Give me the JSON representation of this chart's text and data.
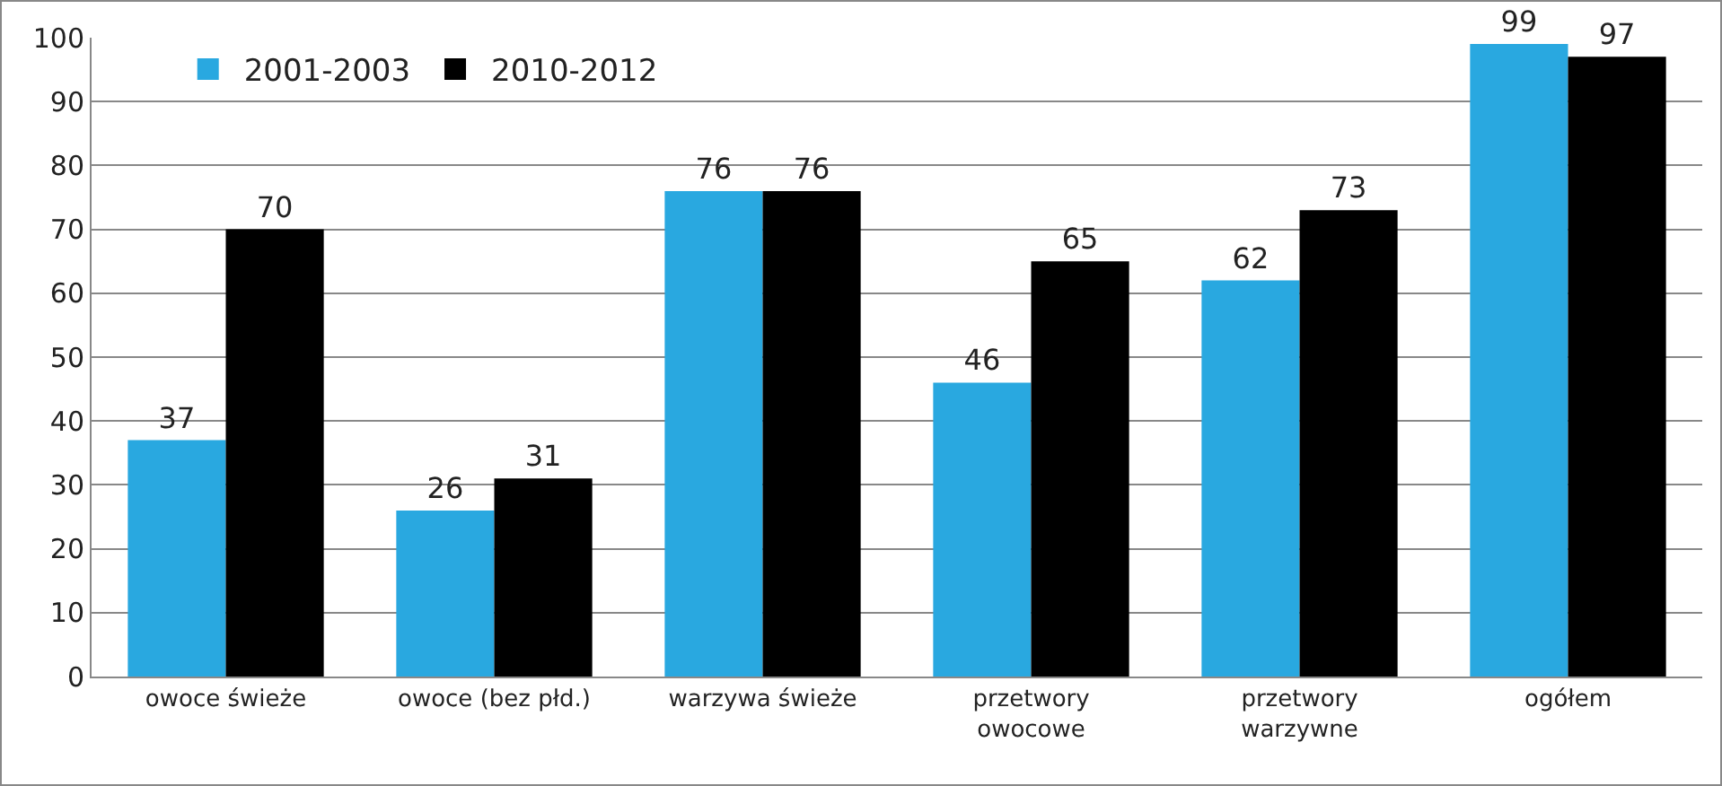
{
  "chart_data": {
    "type": "bar",
    "categories": [
      "owoce świeże",
      "owoce (bez płd.)",
      "warzywa świeże",
      "przetwory owocowe",
      "przetwory warzywne",
      "ogółem"
    ],
    "series": [
      {
        "name": "2001-2003",
        "color": "#29a8e0",
        "values": [
          37,
          26,
          76,
          46,
          62,
          99
        ]
      },
      {
        "name": "2010-2012",
        "color": "#000000",
        "values": [
          70,
          31,
          76,
          65,
          73,
          97
        ]
      }
    ],
    "ylim": [
      0,
      100
    ],
    "yticks": [
      0,
      10,
      20,
      30,
      40,
      50,
      60,
      70,
      80,
      90,
      100
    ],
    "grid": "y",
    "legend": "top left",
    "data_labels": true
  }
}
